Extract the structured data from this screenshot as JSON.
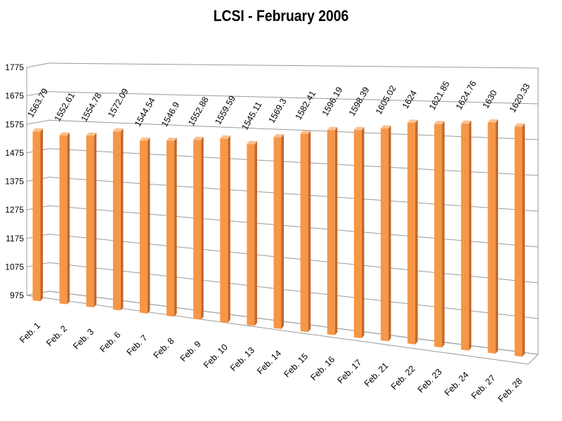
{
  "chart_data": {
    "type": "bar",
    "title": "LCSI - February 2006",
    "xlabel": "",
    "ylabel": "",
    "categories": [
      "Feb. 1",
      "Feb. 2",
      "Feb. 3",
      "Feb. 6",
      "Feb. 7",
      "Feb. 8",
      "Feb. 9",
      "Feb. 10",
      "Feb. 13",
      "Feb. 14",
      "Feb. 15",
      "Feb. 16",
      "Feb. 17",
      "Feb. 21",
      "Feb. 22",
      "Feb. 23",
      "Feb. 24",
      "Feb. 27",
      "Feb. 28"
    ],
    "values": [
      1563.79,
      1552.61,
      1554.78,
      1572.09,
      1544.54,
      1546.9,
      1552.88,
      1559.59,
      1545.11,
      1569.3,
      1582.41,
      1596.19,
      1598.39,
      1605.02,
      1624,
      1621.85,
      1624.76,
      1630,
      1620.33
    ],
    "value_labels": [
      "1563.79",
      "1552.61",
      "1554.78",
      "1572.09",
      "1544.54",
      "1546.9",
      "1552.88",
      "1559.59",
      "1545.11",
      "1569.3",
      "1582.41",
      "1596.19",
      "1598.39",
      "1605.02",
      "1624",
      "1621.85",
      "1624.76",
      "1630",
      "1620.33"
    ],
    "ylim": [
      975,
      1775
    ],
    "yticks": [
      "975",
      "1075",
      "1175",
      "1275",
      "1375",
      "1475",
      "1575",
      "1675",
      "1775"
    ],
    "grid": true,
    "legend": "none",
    "style": "3d-perspective",
    "colors": {
      "bar_front": "#f79646",
      "bar_side": "#c0692a",
      "bar_top": "#fbc08f",
      "grid": "#9a9a9a"
    }
  }
}
